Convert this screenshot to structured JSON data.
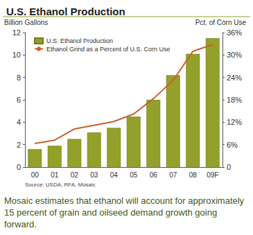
{
  "chart_data": {
    "type": "bar",
    "title": "U.S. Ethanol Production",
    "categories": [
      "00",
      "01",
      "02",
      "03",
      "04",
      "05",
      "06",
      "07",
      "08",
      "09F"
    ],
    "series": [
      {
        "name": "U.S. Ethanol Production",
        "type": "bar",
        "color": "#93a02a",
        "values": [
          1.6,
          1.9,
          2.5,
          3.1,
          3.5,
          4.5,
          6.0,
          8.2,
          10.1,
          11.5
        ]
      },
      {
        "name": "Ethanol Grind as a Percent of U.S. Corn Use",
        "type": "line",
        "color": "#c8602c",
        "axis": "y2",
        "values": [
          6.3,
          7.2,
          10.2,
          11.2,
          12.2,
          14.2,
          18.3,
          23.2,
          31.0,
          32.8
        ]
      }
    ],
    "y_label": "Billion Gallons",
    "y2_label": "Pct. of Corn Use",
    "ylim": [
      0,
      12
    ],
    "yticks": [
      0,
      2,
      4,
      6,
      8,
      10,
      12
    ],
    "y2lim": [
      0,
      36
    ],
    "y2ticks": [
      {
        "value": 0,
        "label": "0"
      },
      {
        "value": 6,
        "label": "6%"
      },
      {
        "value": 12,
        "label": "12%"
      },
      {
        "value": 18,
        "label": "18%"
      },
      {
        "value": 24,
        "label": "24%"
      },
      {
        "value": 30,
        "label": "30%"
      },
      {
        "value": 36,
        "label": "36%"
      }
    ],
    "source": "Source: USDA, RFA, Mosaic",
    "caption": "Mosaic estimates that ethanol will account for approximately 15 percent of grain and oilseed demand growth going forward.",
    "legend": "upper left",
    "grid": false
  }
}
